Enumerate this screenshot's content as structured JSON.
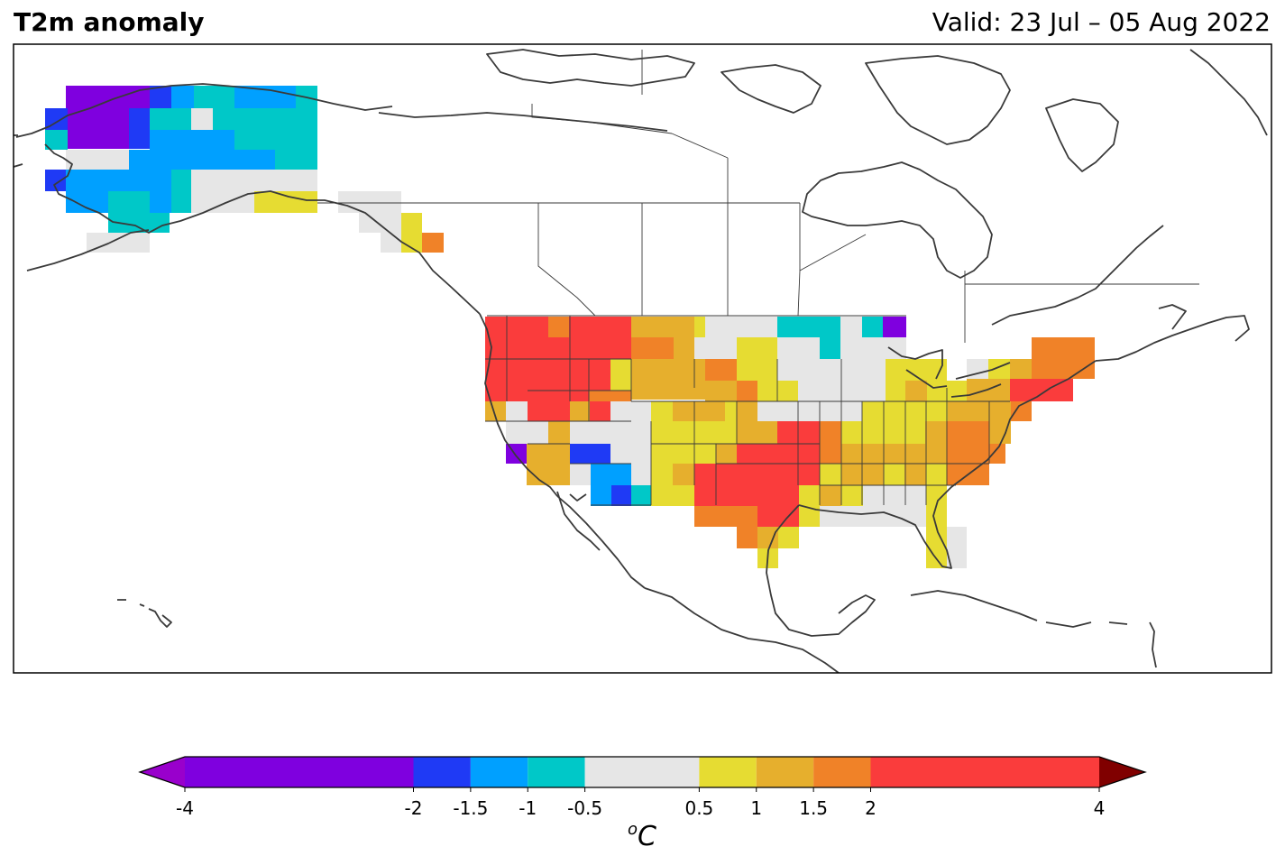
{
  "header": {
    "title": "T2m anomaly",
    "valid": "Valid: 23 Jul – 05 Aug 2022"
  },
  "colorbar": {
    "unit_sup": "o",
    "unit_main": "C",
    "ticks": [
      "-4",
      "-2",
      "-1.5",
      "-1",
      "-0.5",
      "0.5",
      "1",
      "1.5",
      "2",
      "4"
    ],
    "bins": [
      {
        "from": -4,
        "to": -2,
        "color": "#7f00df"
      },
      {
        "from": -2,
        "to": -1.5,
        "color": "#1f3af5"
      },
      {
        "from": -1.5,
        "to": -1,
        "color": "#00a0ff"
      },
      {
        "from": -1,
        "to": -0.5,
        "color": "#00c8c8"
      },
      {
        "from": -0.5,
        "to": 0.5,
        "color": "#e6e6e6"
      },
      {
        "from": 0.5,
        "to": 1,
        "color": "#e6dc32"
      },
      {
        "from": 1,
        "to": 1.5,
        "color": "#e6af2d"
      },
      {
        "from": 1.5,
        "to": 2,
        "color": "#f08228"
      },
      {
        "from": 2,
        "to": 4,
        "color": "#fa3c3c"
      }
    ],
    "under_color": "#9900cc",
    "over_color": "#800000"
  }
}
